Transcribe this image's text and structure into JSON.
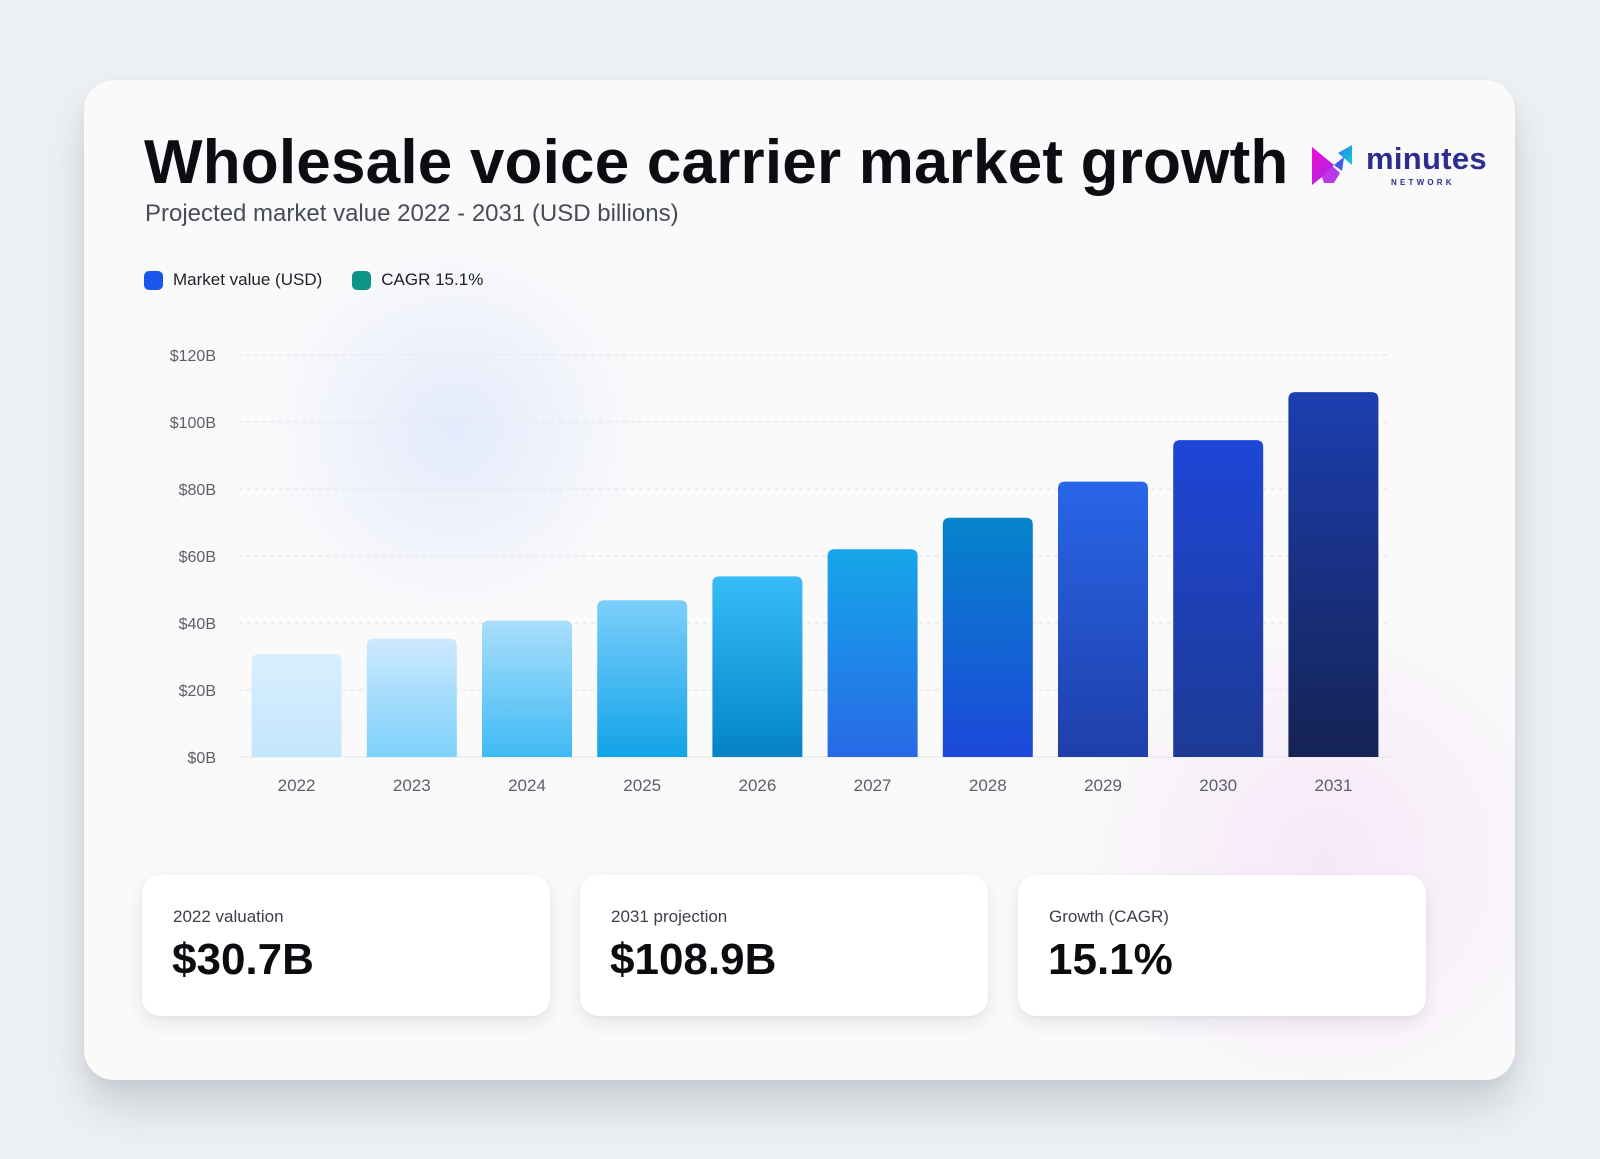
{
  "header": {
    "title": "Wholesale voice carrier market growth",
    "subtitle": "Projected market value 2022 - 2031 (USD billions)"
  },
  "logo": {
    "word": "minutes",
    "sub": "NETWORK",
    "icon": "minutes-logo-mark-icon",
    "colors": [
      "#f20cce",
      "#9b2cf0",
      "#2a7cf2",
      "#0fd0d6"
    ]
  },
  "legend": [
    {
      "label": "Market value (USD)",
      "color": "#1a56ee"
    },
    {
      "label": "CAGR 15.1%",
      "color": "#0e9388"
    }
  ],
  "chart_data": {
    "type": "bar",
    "title": "Wholesale voice carrier market growth",
    "subtitle": "Projected market value 2022 - 2031 (USD billions)",
    "xlabel": "",
    "ylabel": "",
    "categories": [
      "2022",
      "2023",
      "2024",
      "2025",
      "2026",
      "2027",
      "2028",
      "2029",
      "2030",
      "2031"
    ],
    "series": [
      {
        "name": "Market value (USD)",
        "values": [
          30.7,
          35.3,
          40.7,
          46.8,
          53.9,
          62.0,
          71.4,
          82.2,
          94.6,
          108.9
        ]
      }
    ],
    "ylim": [
      0,
      120
    ],
    "yticks": [
      0,
      20,
      40,
      60,
      80,
      100,
      120
    ],
    "ytick_labels": [
      "$0B",
      "$20B",
      "$40B",
      "$60B",
      "$80B",
      "$100B",
      "$120B"
    ],
    "grid": true,
    "legend_position": "top-left",
    "bar_gradients": [
      [
        "#d9efff",
        "#c4e6fd"
      ],
      [
        "#cde9fe",
        "#7dd0fa"
      ],
      [
        "#aadffc",
        "#3fbaf4"
      ],
      [
        "#7ccffb",
        "#12a3e8"
      ],
      [
        "#38bdf8",
        "#0383c6"
      ],
      [
        "#16a7ea",
        "#2869e6"
      ],
      [
        "#0684cc",
        "#1d48da"
      ],
      [
        "#2866e8",
        "#1f3faa"
      ],
      [
        "#1e46d8",
        "#1d3a94"
      ],
      [
        "#1c3eb0",
        "#152354"
      ]
    ]
  },
  "stats": [
    {
      "label": "2022 valuation",
      "value": "$30.7B"
    },
    {
      "label": "2031 projection",
      "value": "$108.9B"
    },
    {
      "label": "Growth (CAGR)",
      "value": "15.1%"
    }
  ]
}
